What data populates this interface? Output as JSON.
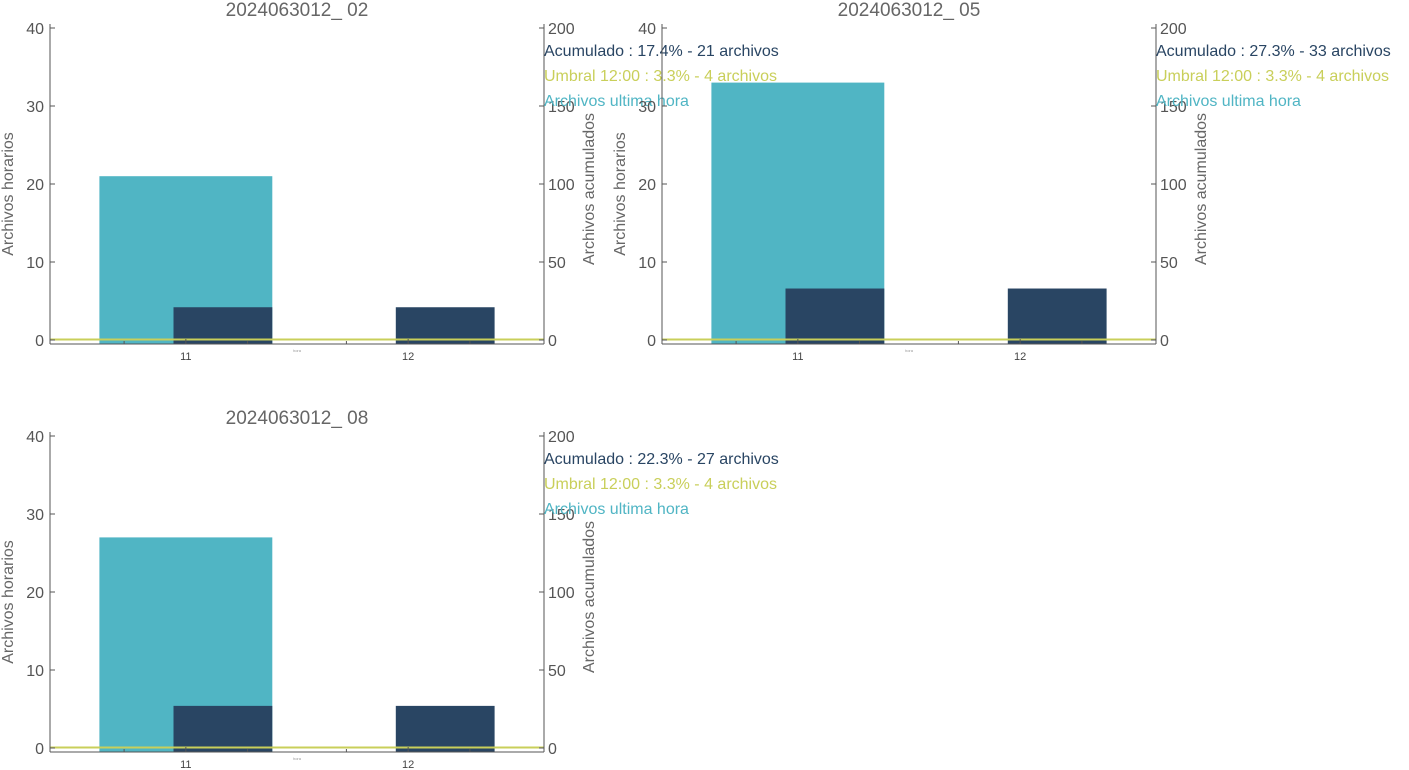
{
  "colors": {
    "hourly": "#50b5c4",
    "accumulated": "#294563",
    "threshold": "#c9cf5a",
    "axis": "#555555"
  },
  "chart_data": [
    {
      "type": "bar",
      "title": "2024063012_ 02",
      "categories": [
        "11",
        "12"
      ],
      "ylabel_left": "Archivos horarios",
      "ylabel_right": "Archivos acumulados",
      "ylim_left": [
        0,
        40
      ],
      "ylim_right": [
        0,
        200
      ],
      "yticks_left": [
        "0",
        "10",
        "20",
        "30",
        "40"
      ],
      "yticks_right": [
        "0",
        "50",
        "100",
        "150",
        "200"
      ],
      "xunit": "hora",
      "series": [
        {
          "name": "Archivos ultima hora",
          "axis": "left",
          "values": [
            21,
            null
          ]
        },
        {
          "name": "Acumulado",
          "axis": "right",
          "values": [
            21,
            21
          ]
        },
        {
          "name": "Umbral 12:00",
          "axis": "right",
          "type": "line",
          "value": 4
        }
      ],
      "legend": [
        "Acumulado : 17.4% - 21 archivos",
        "Umbral 12:00 : 3.3% - 4 archivos",
        "Archivos ultima hora"
      ]
    },
    {
      "type": "bar",
      "title": "2024063012_ 05",
      "categories": [
        "11",
        "12"
      ],
      "ylabel_left": "Archivos horarios",
      "ylabel_right": "Archivos acumulados",
      "ylim_left": [
        0,
        40
      ],
      "ylim_right": [
        0,
        200
      ],
      "yticks_left": [
        "0",
        "10",
        "20",
        "30",
        "40"
      ],
      "yticks_right": [
        "0",
        "50",
        "100",
        "150",
        "200"
      ],
      "xunit": "hora",
      "series": [
        {
          "name": "Archivos ultima hora",
          "axis": "left",
          "values": [
            33,
            null
          ]
        },
        {
          "name": "Acumulado",
          "axis": "right",
          "values": [
            33,
            33
          ]
        },
        {
          "name": "Umbral 12:00",
          "axis": "right",
          "type": "line",
          "value": 4
        }
      ],
      "legend": [
        "Acumulado : 27.3% - 33 archivos",
        "Umbral 12:00 : 3.3% - 4 archivos",
        "Archivos ultima hora"
      ]
    },
    {
      "type": "bar",
      "title": "2024063012_ 08",
      "categories": [
        "11",
        "12"
      ],
      "ylabel_left": "Archivos horarios",
      "ylabel_right": "Archivos acumulados",
      "ylim_left": [
        0,
        40
      ],
      "ylim_right": [
        0,
        200
      ],
      "yticks_left": [
        "0",
        "10",
        "20",
        "30",
        "40"
      ],
      "yticks_right": [
        "0",
        "50",
        "100",
        "150",
        "200"
      ],
      "xunit": "hora",
      "series": [
        {
          "name": "Archivos ultima hora",
          "axis": "left",
          "values": [
            27,
            null
          ]
        },
        {
          "name": "Acumulado",
          "axis": "right",
          "values": [
            27,
            27
          ]
        },
        {
          "name": "Umbral 12:00",
          "axis": "right",
          "type": "line",
          "value": 4
        }
      ],
      "legend": [
        "Acumulado : 22.3% - 27 archivos",
        "Umbral 12:00 : 3.3% - 4 archivos",
        "Archivos ultima hora"
      ]
    }
  ]
}
